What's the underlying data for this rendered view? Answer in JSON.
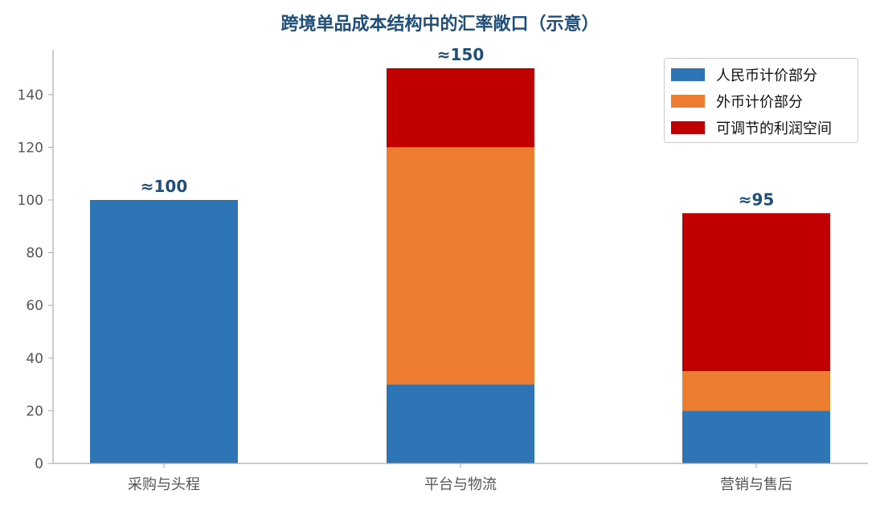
{
  "chart_data": {
    "type": "bar",
    "stacked": true,
    "title": "跨境单品成本结构中的汇率敞口（示意）",
    "categories": [
      "采购与头程",
      "平台与物流",
      "营销与售后"
    ],
    "series": [
      {
        "name": "人民币计价部分",
        "color": "#2e75b6",
        "values": [
          100,
          30,
          20
        ]
      },
      {
        "name": "外币计价部分",
        "color": "#ed7d31",
        "values": [
          0,
          90,
          15
        ]
      },
      {
        "name": "可调节的利润空间",
        "color": "#c00000",
        "values": [
          0,
          30,
          60
        ]
      }
    ],
    "totals_labels": [
      "≈100",
      "≈150",
      "≈95"
    ],
    "ylim": [
      0,
      157
    ],
    "yticks": [
      0,
      20,
      40,
      60,
      80,
      100,
      120,
      140
    ],
    "grid": false,
    "legend_position": "top-right"
  }
}
